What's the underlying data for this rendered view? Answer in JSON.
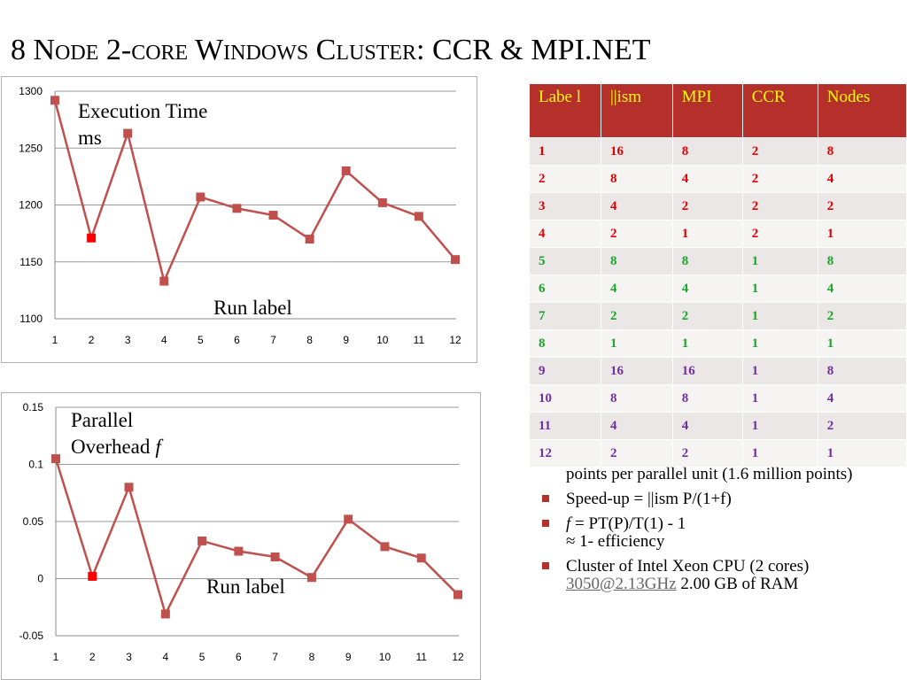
{
  "title": "8 Node 2-core Windows Cluster: CCR & MPI.NET",
  "chart_data": [
    {
      "type": "line",
      "x": [
        1,
        2,
        3,
        4,
        5,
        6,
        7,
        8,
        9,
        10,
        11,
        12
      ],
      "values": [
        1292,
        1171,
        1263,
        1133,
        1207,
        1197,
        1191,
        1170,
        1230,
        1202,
        1190,
        1152
      ],
      "highlight_index": 1,
      "ylim": [
        1100,
        1300
      ],
      "yticks": [
        "1100",
        "1150",
        "1200",
        "1250",
        "1300"
      ],
      "annotation_top": [
        "Execution Time",
        "ms"
      ],
      "annotation_bottom": "Run label",
      "grid": true,
      "colors": {
        "line": "#c0504d",
        "highlight": "#ff0000"
      }
    },
    {
      "type": "line",
      "x": [
        1,
        2,
        3,
        4,
        5,
        6,
        7,
        8,
        9,
        10,
        11,
        12
      ],
      "values": [
        0.105,
        0.002,
        0.08,
        -0.031,
        0.033,
        0.024,
        0.019,
        0.001,
        0.052,
        0.028,
        0.018,
        -0.014
      ],
      "highlight_index": 1,
      "ylim": [
        -0.05,
        0.15
      ],
      "yticks": [
        "-0.05",
        "0",
        "0.05",
        "0.1",
        "0.15"
      ],
      "annotation_top": [
        "Parallel",
        "Overhead"
      ],
      "annotation_top_italic": "f",
      "annotation_bottom": "Run label",
      "grid": true,
      "colors": {
        "line": "#c0504d",
        "highlight": "#ff0000"
      }
    }
  ],
  "table": {
    "headers": [
      "Labe l",
      "||ism",
      "MPI",
      "CCR",
      "Nodes"
    ],
    "rows": [
      {
        "cells": [
          "1",
          "16",
          "8",
          "2",
          "8"
        ],
        "color": "red"
      },
      {
        "cells": [
          "2",
          "8",
          "4",
          "2",
          "4"
        ],
        "color": "red"
      },
      {
        "cells": [
          "3",
          "4",
          "2",
          "2",
          "2"
        ],
        "color": "red"
      },
      {
        "cells": [
          "4",
          "2",
          "1",
          "2",
          "1"
        ],
        "color": "red"
      },
      {
        "cells": [
          "5",
          "8",
          "8",
          "1",
          "8"
        ],
        "color": "green"
      },
      {
        "cells": [
          "6",
          "4",
          "4",
          "1",
          "4"
        ],
        "color": "green"
      },
      {
        "cells": [
          "7",
          "2",
          "2",
          "1",
          "2"
        ],
        "color": "green"
      },
      {
        "cells": [
          "8",
          "1",
          "1",
          "1",
          "1"
        ],
        "color": "green"
      },
      {
        "cells": [
          "9",
          "16",
          "16",
          "1",
          "8"
        ],
        "color": "purple"
      },
      {
        "cells": [
          "10",
          "8",
          "8",
          "1",
          "4"
        ],
        "color": "purple"
      },
      {
        "cells": [
          "11",
          "4",
          "4",
          "1",
          "2"
        ],
        "color": "purple"
      },
      {
        "cells": [
          "12",
          "2",
          "2",
          "1",
          "1"
        ],
        "color": "purple"
      }
    ]
  },
  "bullets": {
    "b0": "points per parallel unit (1.6 million points)",
    "b1": "Speed-up = ||ism P/(1+f)",
    "b2_pre": "f",
    "b2_rest": " = PT(P)/T(1)  - 1",
    "b2_line2": "≈ 1- efficiency",
    "b3_pre": "Cluster of Intel Xeon CPU (2 cores) ",
    "b3_link": "3050@2.13GHz",
    "b3_post": " 2.00 GB of RAM"
  }
}
